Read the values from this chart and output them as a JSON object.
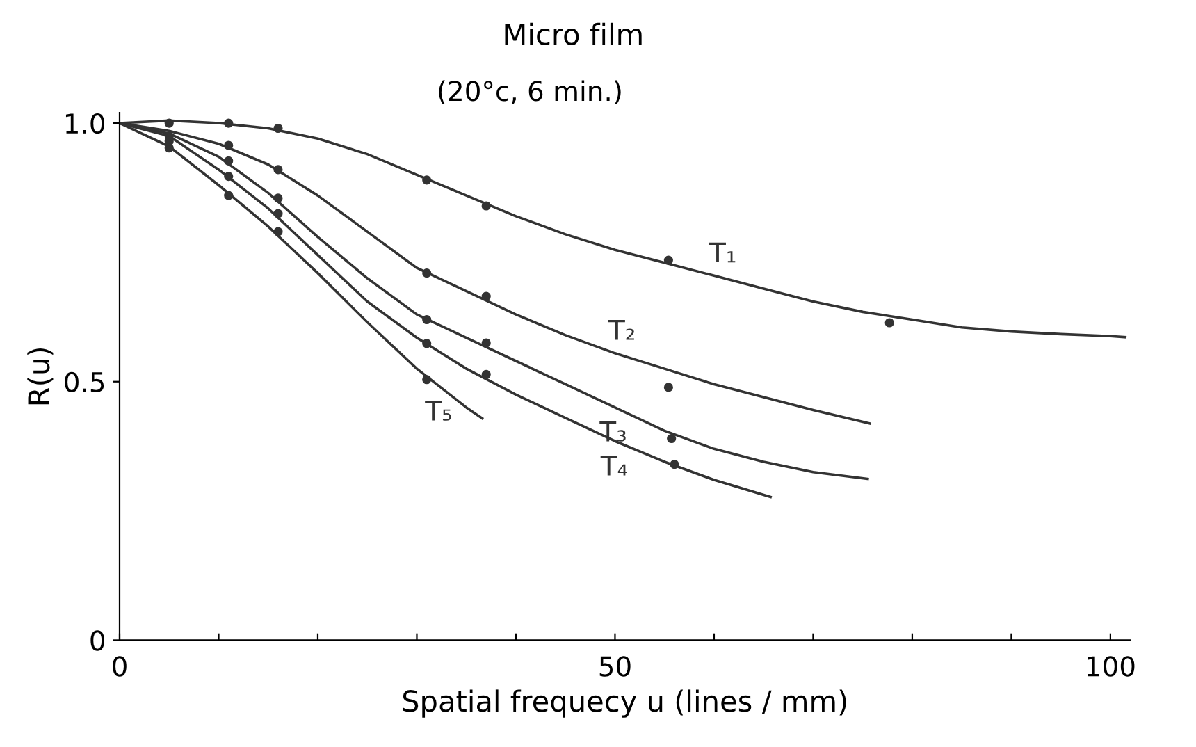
{
  "chart_data": {
    "type": "line",
    "title": "Micro film",
    "subtitle": "(20°c, 6 min.)",
    "xlabel": "Spatial frequecy u (lines / mm)",
    "ylabel": "R(u)",
    "xlim": [
      0,
      102
    ],
    "ylim": [
      0,
      1.02
    ],
    "xticks": [
      0,
      {
        "value": 10,
        "label": null
      },
      {
        "value": 20,
        "label": null
      },
      {
        "value": 30,
        "label": null
      },
      {
        "value": 40,
        "label": null
      },
      50,
      {
        "value": 60,
        "label": null
      },
      {
        "value": 70,
        "label": null
      },
      {
        "value": 80,
        "label": null
      },
      {
        "value": 90,
        "label": null
      },
      100
    ],
    "yticks": [
      0,
      0.5,
      {
        "value": 1,
        "label": "1.0"
      }
    ],
    "series": [
      {
        "name": "T₁",
        "color": "#333333",
        "x": [
          0,
          5,
          10,
          15,
          20,
          25,
          30,
          35,
          40,
          45,
          50,
          55,
          60,
          65,
          70,
          75,
          80,
          85,
          90,
          95,
          100,
          101.5
        ],
        "values": [
          1.0,
          1.005,
          1.0,
          0.99,
          0.97,
          0.94,
          0.9,
          0.86,
          0.82,
          0.785,
          0.755,
          0.73,
          0.705,
          0.68,
          0.655,
          0.635,
          0.62,
          0.605,
          0.597,
          0.592,
          0.588,
          0.586
        ]
      },
      {
        "name": "T₂",
        "color": "#333333",
        "x": [
          0,
          5,
          10,
          15,
          20,
          25,
          30,
          35,
          40,
          45,
          50,
          55,
          60,
          65,
          70,
          75.7
        ],
        "values": [
          1.0,
          0.985,
          0.96,
          0.92,
          0.86,
          0.79,
          0.72,
          0.675,
          0.63,
          0.59,
          0.555,
          0.525,
          0.495,
          0.47,
          0.445,
          0.419
        ]
      },
      {
        "name": "T₃",
        "color": "#333333",
        "x": [
          0,
          5,
          10,
          15,
          20,
          25,
          30,
          35,
          40,
          45,
          50,
          55,
          60,
          65,
          70,
          75.5
        ],
        "values": [
          1.0,
          0.98,
          0.935,
          0.865,
          0.78,
          0.7,
          0.63,
          0.585,
          0.54,
          0.495,
          0.45,
          0.405,
          0.37,
          0.345,
          0.325,
          0.312
        ]
      },
      {
        "name": "T₄",
        "color": "#333333",
        "x": [
          0,
          5,
          10,
          15,
          20,
          25,
          30,
          35,
          40,
          45,
          50,
          55,
          60,
          65.7
        ],
        "values": [
          1.0,
          0.975,
          0.91,
          0.835,
          0.745,
          0.655,
          0.585,
          0.525,
          0.475,
          0.43,
          0.385,
          0.345,
          0.31,
          0.277
        ]
      },
      {
        "name": "T₅",
        "color": "#333333",
        "x": [
          0,
          5,
          10,
          15,
          20,
          25,
          30,
          35,
          36.6
        ],
        "values": [
          1.0,
          0.955,
          0.88,
          0.8,
          0.71,
          0.615,
          0.525,
          0.45,
          0.429
        ]
      },
      {
        "type": "scatter",
        "color": "#333333",
        "marker": "circle",
        "x": [
          5,
          11,
          16,
          31,
          37,
          55.4,
          77.7
        ],
        "values": [
          1.0,
          1.0,
          0.99,
          0.89,
          0.84,
          0.735,
          0.614
        ]
      },
      {
        "type": "scatter",
        "color": "#333333",
        "marker": "circle",
        "x": [
          11,
          16,
          31,
          37,
          55.4
        ],
        "values": [
          0.957,
          0.91,
          0.71,
          0.665,
          0.489
        ]
      },
      {
        "type": "scatter",
        "color": "#333333",
        "marker": "circle",
        "x": [
          5,
          11,
          16,
          31,
          37,
          55.7
        ],
        "values": [
          0.975,
          0.927,
          0.855,
          0.62,
          0.575,
          0.39
        ]
      },
      {
        "type": "scatter",
        "color": "#333333",
        "marker": "circle",
        "x": [
          5,
          11,
          16,
          31,
          37,
          56
        ],
        "values": [
          0.965,
          0.897,
          0.825,
          0.574,
          0.514,
          0.34
        ]
      },
      {
        "type": "scatter",
        "color": "#333333",
        "marker": "circle",
        "x": [
          5,
          11,
          16,
          31
        ],
        "values": [
          0.952,
          0.86,
          0.79,
          0.504
        ]
      }
    ]
  }
}
